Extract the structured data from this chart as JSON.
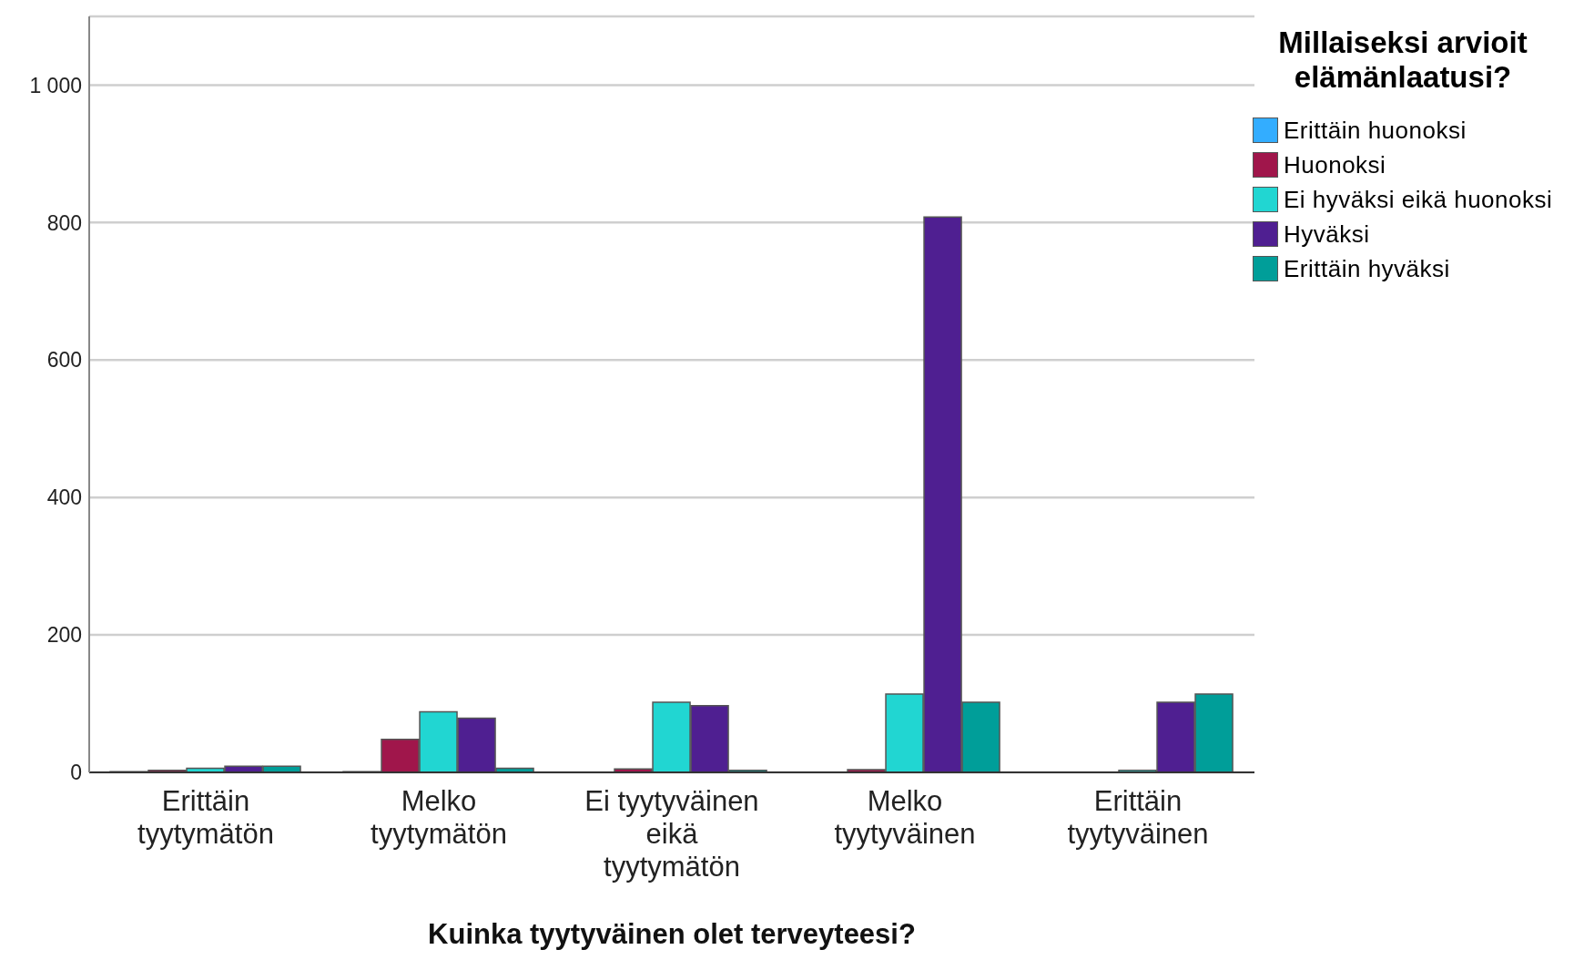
{
  "chart_data": {
    "type": "bar",
    "xlabel": "Kuinka tyytyväinen olet terveyteesi?",
    "legend_title": "Millaiseksi arvioit elämänlaatusi?",
    "categories": [
      "Erittäin tyytymätön",
      "Melko tyytymätön",
      "Ei tyytyväinen eikä tyytymätön",
      "Melko tyytyväinen",
      "Erittäin tyytyväinen"
    ],
    "series": [
      {
        "name": "Erittäin huonoksi",
        "color": "#33adff",
        "values": [
          1,
          1,
          0,
          0,
          0
        ]
      },
      {
        "name": "Huonoksi",
        "color": "#a0164b",
        "values": [
          3,
          48,
          5,
          4,
          0
        ]
      },
      {
        "name": "Ei hyväksi eikä huonoksi",
        "color": "#21d6d2",
        "values": [
          6,
          88,
          102,
          114,
          3
        ]
      },
      {
        "name": "Hyväksi",
        "color": "#4f1f91",
        "values": [
          9,
          79,
          97,
          808,
          102
        ]
      },
      {
        "name": "Erittäin hyväksi",
        "color": "#009e99",
        "values": [
          9,
          6,
          3,
          102,
          114
        ]
      }
    ],
    "ylim": [
      0,
      1100
    ],
    "yticks": [
      0,
      200,
      400,
      600,
      800,
      {
        "value": 1000,
        "label": "1 000"
      }
    ],
    "grid": "y",
    "legend": "top right"
  }
}
